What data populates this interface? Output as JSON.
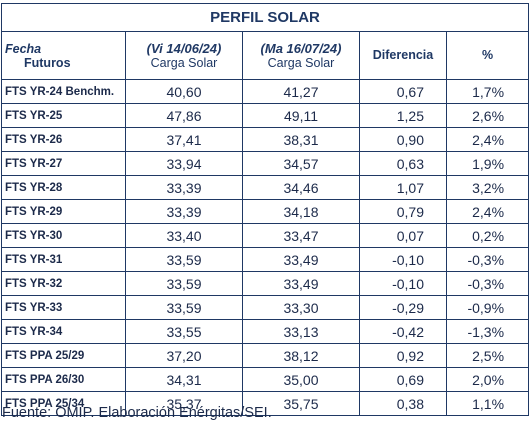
{
  "title": "PERFIL SOLAR",
  "header": {
    "fecha": "Fecha",
    "futuros": "Futuros",
    "date1": "(Vi 14/06/24)",
    "date2": "(Ma 16/07/24)",
    "carga1": "Carga Solar",
    "carga2": "Carga Solar",
    "diferencia": "Diferencia",
    "pct": "%"
  },
  "rows": [
    {
      "label": "FTS YR-24 Benchm.",
      "v1": "40,60",
      "v2": "41,27",
      "dif": "0,67",
      "pct": "1,7%"
    },
    {
      "label": "FTS YR-25",
      "v1": "47,86",
      "v2": "49,11",
      "dif": "1,25",
      "pct": "2,6%"
    },
    {
      "label": "FTS YR-26",
      "v1": "37,41",
      "v2": "38,31",
      "dif": "0,90",
      "pct": "2,4%"
    },
    {
      "label": "FTS YR-27",
      "v1": "33,94",
      "v2": "34,57",
      "dif": "0,63",
      "pct": "1,9%"
    },
    {
      "label": "FTS YR-28",
      "v1": "33,39",
      "v2": "34,46",
      "dif": "1,07",
      "pct": "3,2%"
    },
    {
      "label": "FTS YR-29",
      "v1": "33,39",
      "v2": "34,18",
      "dif": "0,79",
      "pct": "2,4%"
    },
    {
      "label": "FTS YR-30",
      "v1": "33,40",
      "v2": "33,47",
      "dif": "0,07",
      "pct": "0,2%"
    },
    {
      "label": "FTS YR-31",
      "v1": "33,59",
      "v2": "33,49",
      "dif": "-0,10",
      "pct": "-0,3%"
    },
    {
      "label": "FTS YR-32",
      "v1": "33,59",
      "v2": "33,49",
      "dif": "-0,10",
      "pct": "-0,3%"
    },
    {
      "label": "FTS YR-33",
      "v1": "33,59",
      "v2": "33,30",
      "dif": "-0,29",
      "pct": "-0,9%"
    },
    {
      "label": "FTS YR-34",
      "v1": "33,55",
      "v2": "33,13",
      "dif": "-0,42",
      "pct": "-1,3%"
    },
    {
      "label": "FTS PPA 25/29",
      "v1": "37,20",
      "v2": "38,12",
      "dif": "0,92",
      "pct": "2,5%"
    },
    {
      "label": "FTS PPA 26/30",
      "v1": "34,31",
      "v2": "35,00",
      "dif": "0,69",
      "pct": "2,0%"
    },
    {
      "label": "FTS PPA 25/34",
      "v1": "35,37",
      "v2": "35,75",
      "dif": "0,38",
      "pct": "1,1%"
    }
  ],
  "source": "Fuente: OMIP. Elaboración Enérgitas/SEI.",
  "colors": {
    "border": "#1f3864",
    "header_text": "#1f3864",
    "body_text": "#1c2a4a"
  }
}
